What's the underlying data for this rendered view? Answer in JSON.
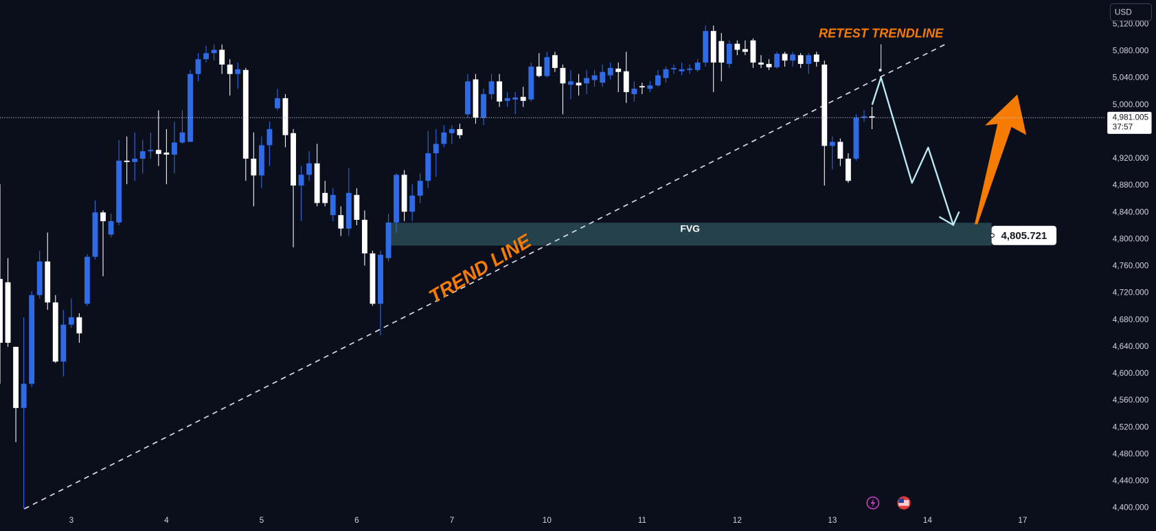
{
  "chart_data": {
    "type": "candlestick",
    "currency": "USD",
    "up_color": "#2f6be6",
    "down_color": "#ffffff",
    "xlim": [
      0,
      139.5
    ],
    "ylim": [
      4366,
      5156
    ],
    "xticks": [
      {
        "value": 9,
        "label": "3"
      },
      {
        "value": 21,
        "label": "4"
      },
      {
        "value": 33,
        "label": "5"
      },
      {
        "value": 45,
        "label": "6"
      },
      {
        "value": 57,
        "label": "7"
      },
      {
        "value": 69,
        "label": "10"
      },
      {
        "value": 81,
        "label": "11"
      },
      {
        "value": 93,
        "label": "12"
      },
      {
        "value": 105,
        "label": "13"
      },
      {
        "value": 117,
        "label": "14"
      },
      {
        "value": 129,
        "label": "17"
      }
    ],
    "yticks": [
      {
        "value": 4400,
        "label": "4,400.000"
      },
      {
        "value": 4440,
        "label": "4,440.000"
      },
      {
        "value": 4480,
        "label": "4,480.000"
      },
      {
        "value": 4520,
        "label": "4,520.000"
      },
      {
        "value": 4560,
        "label": "4,560.000"
      },
      {
        "value": 4600,
        "label": "4,600.000"
      },
      {
        "value": 4640,
        "label": "4,640.000"
      },
      {
        "value": 4680,
        "label": "4,680.000"
      },
      {
        "value": 4720,
        "label": "4,720.000"
      },
      {
        "value": 4760,
        "label": "4,760.000"
      },
      {
        "value": 4800,
        "label": "4,800.000"
      },
      {
        "value": 4840,
        "label": "4,840.000"
      },
      {
        "value": 4880,
        "label": "4,880.000"
      },
      {
        "value": 4920,
        "label": "4,920.000"
      },
      {
        "value": 5000,
        "label": "5,000.000"
      },
      {
        "value": 5040,
        "label": "5,040.000"
      },
      {
        "value": 5080,
        "label": "5,080.000"
      },
      {
        "value": 5120,
        "label": "5,120.000"
      }
    ],
    "open": [
      4741,
      4736,
      4640,
      4549,
      4585,
      4717,
      4767,
      4706,
      4618,
      4673,
      4684,
      4704,
      4774,
      4840,
      4807,
      4825,
      4917,
      4915,
      4920,
      4931,
      4933,
      4929,
      4926,
      4944,
      4945,
      5046,
      5068,
      5077,
      5082,
      5060,
      5046,
      5052,
      4920,
      4895,
      4940,
      4995,
      5010,
      4958,
      4880,
      4896,
      4913,
      4869,
      4836,
      4836,
      4816,
      4866,
      4829,
      4779,
      4704,
      4772,
      4825,
      4896,
      4841,
      4865,
      4887,
      4928,
      4942,
      4958,
      4964,
      4986,
      5038,
      4981,
      5016,
      5035,
      5006,
      5008,
      5012,
      5008,
      5057,
      5043,
      5074,
      5055,
      5030,
      5033,
      5032,
      5037,
      5033,
      5044,
      5054,
      5050,
      5016,
      5028,
      5024,
      5029,
      5040,
      5053,
      5050,
      5052,
      5052,
      5063,
      5110,
      5095,
      5061,
      5091,
      5083,
      5096,
      5063,
      5061,
      5056,
      5076,
      5066,
      5074,
      5061,
      5075,
      5060,
      4939,
      4945,
      4920,
      4920,
      4981,
      4983
    ],
    "high": [
      4882,
      4772,
      4640,
      4684,
      4723,
      4783,
      4810,
      4717,
      4695,
      4712,
      4690,
      4778,
      4858,
      4843,
      4838,
      4948,
      4953,
      4959,
      4948,
      4959,
      4992,
      4964,
      4975,
      4992,
      5052,
      5077,
      5088,
      5090,
      5090,
      5068,
      5063,
      5055,
      4959,
      4953,
      4975,
      5024,
      5016,
      4964,
      4909,
      4931,
      4942,
      4887,
      4876,
      4849,
      4906,
      4876,
      4843,
      4783,
      4783,
      4838,
      4898,
      4903,
      4882,
      4898,
      4961,
      4964,
      4970,
      4970,
      4972,
      5046,
      5046,
      5024,
      5046,
      5046,
      5019,
      5019,
      5027,
      5063,
      5077,
      5079,
      5079,
      5060,
      5052,
      5046,
      5052,
      5052,
      5060,
      5063,
      5063,
      5079,
      5035,
      5033,
      5035,
      5052,
      5057,
      5060,
      5063,
      5060,
      5068,
      5118,
      5118,
      5107,
      5096,
      5096,
      5096,
      5099,
      5074,
      5068,
      5079,
      5079,
      5079,
      5077,
      5077,
      5079,
      5066,
      4953,
      4950,
      4928,
      4986,
      4992,
      4997
    ],
    "low": [
      4585,
      4640,
      4498,
      4399,
      4580,
      4712,
      4695,
      4616,
      4596,
      4668,
      4646,
      4701,
      4770,
      4745,
      4803,
      4821,
      4882,
      4887,
      4898,
      4920,
      4909,
      4882,
      4898,
      4942,
      4945,
      5035,
      5063,
      5066,
      5046,
      5014,
      5024,
      4887,
      4849,
      4876,
      4909,
      4992,
      4937,
      4788,
      4827,
      4887,
      4849,
      4849,
      4827,
      4805,
      4805,
      4821,
      4761,
      4701,
      4657,
      4767,
      4810,
      4827,
      4827,
      4854,
      4876,
      4893,
      4937,
      4942,
      4950,
      4981,
      4972,
      4970,
      5008,
      4997,
      4997,
      4986,
      4997,
      5005,
      5041,
      5041,
      5049,
      4986,
      5008,
      5014,
      5016,
      5027,
      5027,
      5038,
      5019,
      5003,
      5005,
      5016,
      5019,
      5027,
      5033,
      5046,
      5044,
      5046,
      5049,
      5057,
      5019,
      5035,
      5055,
      5074,
      5074,
      5055,
      5055,
      5052,
      5054,
      5057,
      5057,
      5055,
      5046,
      5057,
      4880,
      4904,
      4909,
      4884,
      4917,
      4975,
      4964
    ],
    "close": [
      4646,
      4646,
      4549,
      4585,
      4717,
      4767,
      4706,
      4618,
      4673,
      4684,
      4660,
      4774,
      4840,
      4827,
      4827,
      4917,
      4915,
      4920,
      4931,
      4933,
      4927,
      4926,
      4944,
      4959,
      5046,
      5068,
      5077,
      5082,
      5060,
      5046,
      5053,
      4920,
      4895,
      4940,
      4964,
      5010,
      4955,
      4880,
      4896,
      4913,
      4854,
      4854,
      4866,
      4816,
      4869,
      4829,
      4779,
      4704,
      4777,
      4825,
      4896,
      4841,
      4865,
      4887,
      4928,
      4942,
      4959,
      4964,
      4955,
      5035,
      4981,
      5016,
      5035,
      5005,
      5010,
      5011,
      5006,
      5057,
      5043,
      5071,
      5055,
      5032,
      5035,
      5029,
      5040,
      5044,
      5049,
      5055,
      5049,
      5019,
      5024,
      5026,
      5029,
      5044,
      5053,
      5055,
      5053,
      5054,
      5063,
      5110,
      5063,
      5063,
      5091,
      5082,
      5079,
      5063,
      5060,
      5056,
      5076,
      5066,
      5075,
      5061,
      5074,
      5064,
      4939,
      4945,
      4920,
      4887,
      4981,
      4983,
      4981
    ],
    "last_price": {
      "value": 4981.005,
      "label": "4,981.005"
    },
    "countdown": "37:57",
    "annotations": {
      "retest": "RETEST TRENDLINE",
      "trend_line": "TREND LINE"
    },
    "fvg": {
      "label": "FVG",
      "price": {
        "value": 4805.721,
        "label": "4,805.721"
      }
    }
  }
}
